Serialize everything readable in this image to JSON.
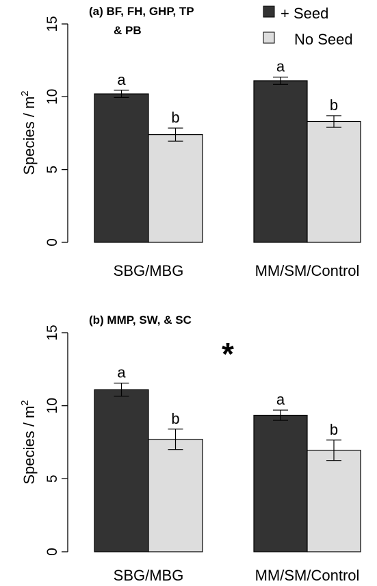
{
  "chart_data": [
    {
      "type": "bar",
      "title_lines": [
        "(a) BF, FH, GHP, TP",
        "& PB"
      ],
      "ylabel": "Species / m",
      "ylabel_superscript": "2",
      "ylim": [
        0,
        15
      ],
      "yticks": [
        "0",
        "5",
        "10",
        "15"
      ],
      "categories": [
        "SBG/MBG",
        "MM/SM/Control"
      ],
      "series": [
        {
          "name": "+ Seed",
          "color": "#333333",
          "values": [
            10.2,
            11.1
          ],
          "error": [
            0.25,
            0.25
          ],
          "letters": [
            "a",
            "a"
          ]
        },
        {
          "name": "No Seed",
          "color": "#dddddd",
          "values": [
            7.4,
            8.3
          ],
          "error": [
            0.45,
            0.4
          ],
          "letters": [
            "b",
            "b"
          ]
        }
      ],
      "legend": {
        "position": "top-right"
      },
      "grid": false
    },
    {
      "type": "bar",
      "title_lines": [
        "(b) MMP, SW, & SC"
      ],
      "ylabel": "Species / m",
      "ylabel_superscript": "2",
      "ylim": [
        0,
        15
      ],
      "yticks": [
        "0",
        "5",
        "10",
        "15"
      ],
      "categories": [
        "SBG/MBG",
        "MM/SM/Control"
      ],
      "series": [
        {
          "name": "+ Seed",
          "color": "#333333",
          "values": [
            11.1,
            9.35
          ],
          "error": [
            0.45,
            0.35
          ],
          "letters": [
            "a",
            "a"
          ]
        },
        {
          "name": "No Seed",
          "color": "#dddddd",
          "values": [
            7.7,
            6.95
          ],
          "error": [
            0.7,
            0.7
          ],
          "letters": [
            "b",
            "b"
          ]
        }
      ],
      "annotation": "*",
      "grid": false
    }
  ]
}
